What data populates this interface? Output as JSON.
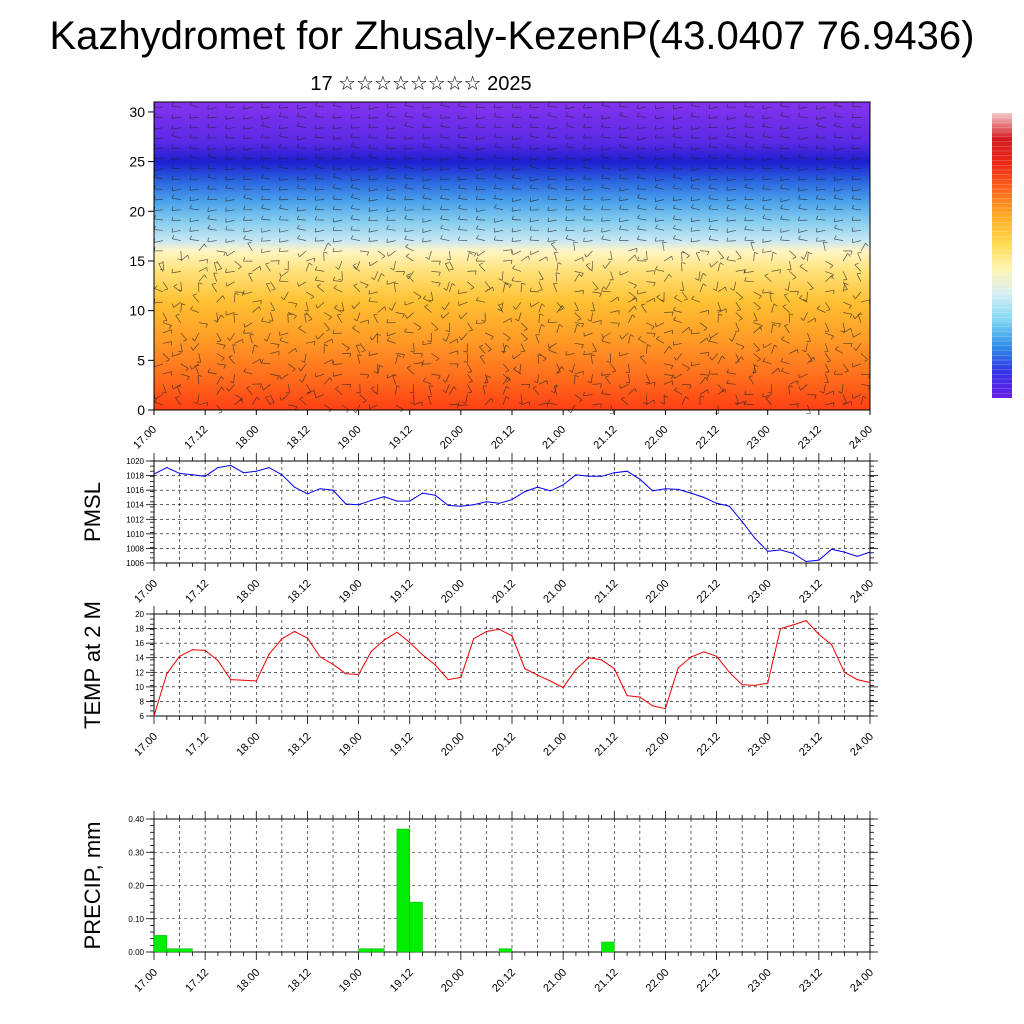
{
  "page": {
    "title": "Kazhydromet for Zhusaly-KezenP(43.0407 76.9436)",
    "subtitle": "17 ☆☆☆☆☆☆☆☆ 2025"
  },
  "chart_data": [
    {
      "type": "heatmap",
      "name": "cross-section",
      "xlabel": "",
      "ylabel": "",
      "x_tick_labels": [
        "17.00",
        "17.12",
        "18.00",
        "18.12",
        "19.00",
        "19.12",
        "20.00",
        "20.12",
        "21.00",
        "21.12",
        "22.00",
        "22.12",
        "23.00",
        "23.12",
        "24.00"
      ],
      "y_ticks": [
        0,
        5,
        10,
        15,
        20,
        25,
        30
      ],
      "ylim": [
        0,
        31
      ],
      "colorbar": {
        "colors": [
          "#6a1fe8",
          "#3333e6",
          "#2e8fe8",
          "#7fd6f2",
          "#d6eef5",
          "#fff5b0",
          "#ffd84a",
          "#ffac25",
          "#ff6a1a",
          "#ee2a1a",
          "#d41a20",
          "#f5c8c8"
        ]
      },
      "color_levels": [
        {
          "height": 0,
          "color": "#ff3f14"
        },
        {
          "height": 3,
          "color": "#ff6a1c"
        },
        {
          "height": 7,
          "color": "#ff9a26"
        },
        {
          "height": 11,
          "color": "#ffc233"
        },
        {
          "height": 14,
          "color": "#ffe27a"
        },
        {
          "height": 16,
          "color": "#fff5c4"
        },
        {
          "height": 17,
          "color": "#c9e8f2"
        },
        {
          "height": 19,
          "color": "#85ccef"
        },
        {
          "height": 21,
          "color": "#4aa2ec"
        },
        {
          "height": 23,
          "color": "#2b66e0"
        },
        {
          "height": 25,
          "color": "#1d1fd0"
        },
        {
          "height": 27,
          "color": "#5b2ae6"
        },
        {
          "height": 31,
          "color": "#8533ef"
        }
      ],
      "grid": false
    },
    {
      "type": "line",
      "name": "pmsl",
      "ylabel": "PMSL",
      "y_ticks": [
        1006,
        1008,
        1010,
        1012,
        1014,
        1016,
        1018,
        1020
      ],
      "ylim": [
        1006,
        1020
      ],
      "x_tick_labels": [
        "17.00",
        "17.12",
        "18.00",
        "18.12",
        "19.00",
        "19.12",
        "20.00",
        "20.12",
        "21.00",
        "21.12",
        "22.00",
        "22.12",
        "23.00",
        "23.12",
        "24.00"
      ],
      "x_step_hours": 3,
      "color": "#0000ee",
      "values": [
        1018.2,
        1019.1,
        1018.3,
        1018.1,
        1017.9,
        1019.1,
        1019.4,
        1018.4,
        1018.6,
        1019.1,
        1018.1,
        1016.4,
        1015.5,
        1016.2,
        1016.0,
        1014.1,
        1014.0,
        1014.6,
        1015.1,
        1014.5,
        1014.5,
        1015.6,
        1015.3,
        1013.9,
        1013.8,
        1014.0,
        1014.4,
        1014.2,
        1014.7,
        1015.8,
        1016.4,
        1015.9,
        1016.7,
        1018.1,
        1017.9,
        1017.9,
        1018.4,
        1018.6,
        1017.5,
        1015.9,
        1016.2,
        1016.1,
        1015.6,
        1015.0,
        1014.2,
        1013.8,
        1011.7,
        1009.4,
        1007.6,
        1007.8,
        1007.3,
        1006.2,
        1006.4,
        1007.9,
        1007.5,
        1006.9,
        1007.5
      ],
      "grid": true
    },
    {
      "type": "line",
      "name": "temp",
      "ylabel": "TEMP at 2 M",
      "y_ticks": [
        6,
        8,
        10,
        12,
        14,
        16,
        18,
        20
      ],
      "ylim": [
        6,
        20
      ],
      "x_tick_labels": [
        "17.00",
        "17.12",
        "18.00",
        "18.12",
        "19.00",
        "19.12",
        "20.00",
        "20.12",
        "21.00",
        "21.12",
        "22.00",
        "22.12",
        "23.00",
        "23.12",
        "24.00"
      ],
      "x_step_hours": 3,
      "color": "#ee0000",
      "values": [
        6.0,
        11.8,
        14.2,
        15.1,
        15.0,
        13.6,
        11.0,
        10.9,
        10.8,
        14.5,
        16.6,
        17.6,
        16.7,
        14.1,
        13.1,
        11.8,
        11.7,
        14.9,
        16.4,
        17.5,
        16.1,
        14.4,
        13.0,
        11.0,
        11.3,
        16.6,
        17.6,
        17.9,
        17.0,
        12.5,
        11.6,
        10.8,
        9.9,
        12.4,
        14.0,
        13.7,
        12.5,
        8.8,
        8.6,
        7.4,
        7.0,
        12.6,
        14.1,
        14.8,
        14.2,
        12.0,
        10.3,
        10.2,
        10.5,
        18.0,
        18.5,
        19.1,
        17.2,
        15.8,
        12.0,
        11.0,
        10.6
      ],
      "grid": true
    },
    {
      "type": "bar",
      "name": "precip",
      "ylabel": "PRECIP, mm",
      "y_tick_labels": [
        "0.00",
        "0.10",
        "0.20",
        "0.30",
        "0.40"
      ],
      "ylim": [
        0,
        0.4
      ],
      "x_tick_labels": [
        "17.00",
        "17.12",
        "18.00",
        "18.12",
        "19.00",
        "19.12",
        "20.00",
        "20.12",
        "21.00",
        "21.12",
        "22.00",
        "22.12",
        "23.00",
        "23.12",
        "24.00"
      ],
      "x_step_hours": 3,
      "color": "#00ee00",
      "values": [
        0.05,
        0.01,
        0.01,
        0,
        0,
        0,
        0,
        0,
        0,
        0,
        0,
        0,
        0,
        0,
        0,
        0,
        0.01,
        0.01,
        0,
        0.37,
        0.15,
        0,
        0,
        0,
        0,
        0,
        0,
        0.01,
        0,
        0,
        0,
        0,
        0,
        0,
        0,
        0.03,
        0,
        0,
        0,
        0,
        0,
        0,
        0,
        0,
        0,
        0,
        0,
        0,
        0,
        0,
        0,
        0,
        0,
        0,
        0,
        0
      ],
      "grid": true
    }
  ]
}
